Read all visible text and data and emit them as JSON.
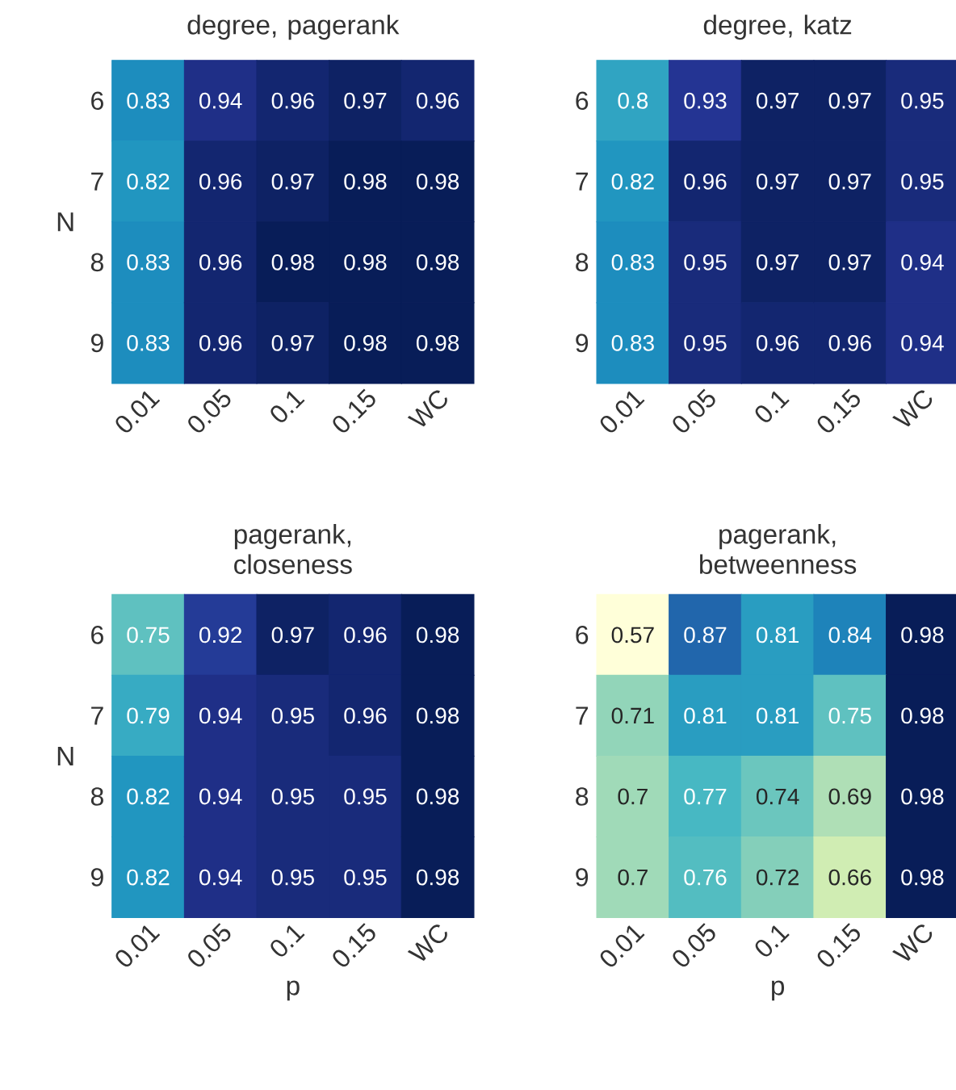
{
  "chart_data": [
    {
      "type": "heatmap",
      "title": "degree, pagerank",
      "ylabel": "N",
      "categories": [
        "0.01",
        "0.05",
        "0.1",
        "0.15",
        "WC"
      ],
      "y_categories": [
        "6",
        "7",
        "8",
        "9"
      ],
      "data_labels": true,
      "cells": [
        [
          0.83,
          0.94,
          0.96,
          0.97,
          0.96
        ],
        [
          0.82,
          0.96,
          0.97,
          0.98,
          0.98
        ],
        [
          0.83,
          0.96,
          0.98,
          0.98,
          0.98
        ],
        [
          0.83,
          0.96,
          0.97,
          0.98,
          0.98
        ]
      ]
    },
    {
      "type": "heatmap",
      "title": "degree, katz",
      "categories": [
        "0.01",
        "0.05",
        "0.1",
        "0.15",
        "WC"
      ],
      "y_categories": [
        "6",
        "7",
        "8",
        "9"
      ],
      "data_labels": true,
      "cells": [
        [
          0.8,
          0.93,
          0.97,
          0.97,
          0.95
        ],
        [
          0.82,
          0.96,
          0.97,
          0.97,
          0.95
        ],
        [
          0.83,
          0.95,
          0.97,
          0.97,
          0.94
        ],
        [
          0.83,
          0.95,
          0.96,
          0.96,
          0.94
        ]
      ]
    },
    {
      "type": "heatmap",
      "title": "pagerank, closeness",
      "ylabel": "N",
      "xlabel": "p",
      "categories": [
        "0.01",
        "0.05",
        "0.1",
        "0.15",
        "WC"
      ],
      "y_categories": [
        "6",
        "7",
        "8",
        "9"
      ],
      "data_labels": true,
      "cells": [
        [
          0.75,
          0.92,
          0.97,
          0.96,
          0.98
        ],
        [
          0.79,
          0.94,
          0.95,
          0.96,
          0.98
        ],
        [
          0.82,
          0.94,
          0.95,
          0.95,
          0.98
        ],
        [
          0.82,
          0.94,
          0.95,
          0.95,
          0.98
        ]
      ]
    },
    {
      "type": "heatmap",
      "title": "pagerank, betweenness",
      "xlabel": "p",
      "categories": [
        "0.01",
        "0.05",
        "0.1",
        "0.15",
        "WC"
      ],
      "y_categories": [
        "6",
        "7",
        "8",
        "9"
      ],
      "data_labels": true,
      "cells": [
        [
          0.57,
          0.87,
          0.81,
          0.84,
          0.98
        ],
        [
          0.71,
          0.81,
          0.81,
          0.75,
          0.98
        ],
        [
          0.7,
          0.77,
          0.74,
          0.69,
          0.98
        ],
        [
          0.7,
          0.76,
          0.72,
          0.66,
          0.98
        ]
      ]
    }
  ]
}
